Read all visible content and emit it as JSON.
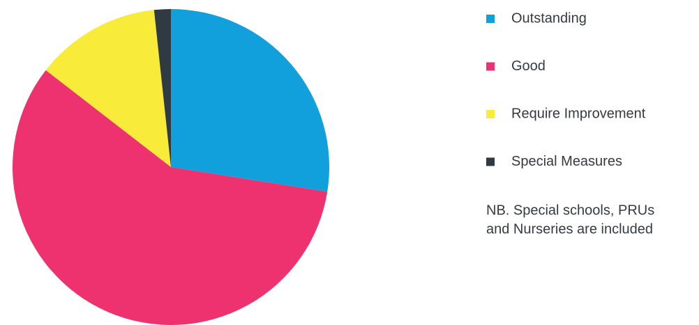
{
  "chart_data": {
    "type": "pie",
    "categories": [
      "Outstanding",
      "Good",
      "Require Improvement",
      "Special Measures"
    ],
    "values": [
      27.5,
      58,
      12.8,
      1.7
    ],
    "colors": [
      "#12a0dc",
      "#ee3270",
      "#f8eb3a",
      "#2f3a43"
    ],
    "note": [
      "NB. Special schools, PRUs",
      "and Nurseries are included"
    ]
  }
}
